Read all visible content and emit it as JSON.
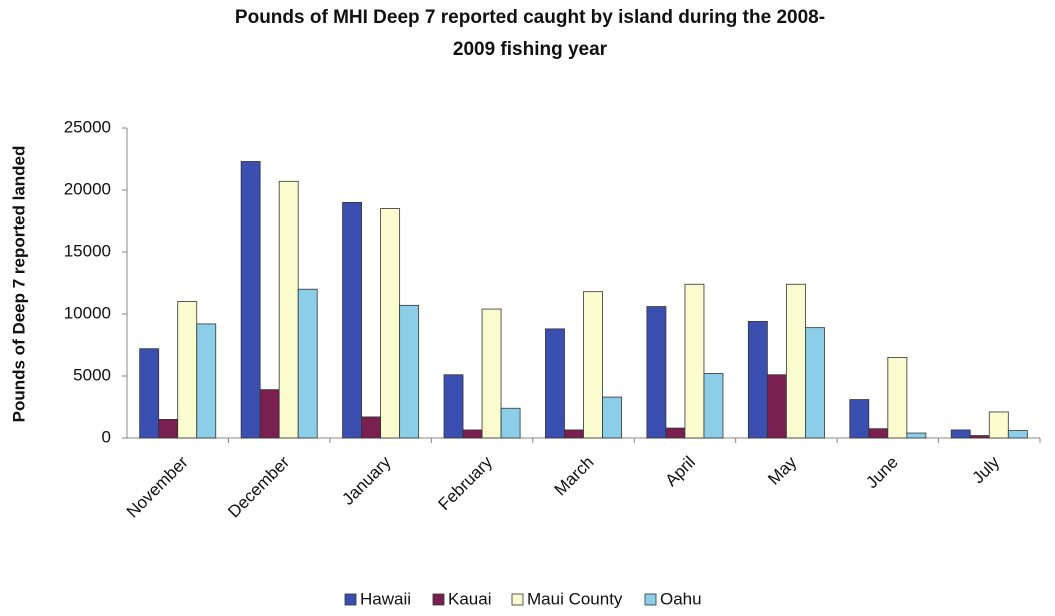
{
  "chart_data": {
    "type": "bar",
    "title": [
      "Pounds of MHI Deep 7 reported caught by island during the 2008-",
      "2009 fishing year"
    ],
    "y_label": "Pounds of Deep 7 reported landed",
    "categories": [
      "November",
      "December",
      "January",
      "February",
      "March",
      "April",
      "May",
      "June",
      "July"
    ],
    "series": [
      {
        "name": "Hawaii",
        "color": "#3a4fb0",
        "values": [
          7200,
          22300,
          19000,
          5100,
          8800,
          10600,
          9400,
          3100,
          650
        ]
      },
      {
        "name": "Kauai",
        "color": "#7a2050",
        "values": [
          1500,
          3900,
          1700,
          650,
          650,
          800,
          5100,
          750,
          200
        ]
      },
      {
        "name": "Maui County",
        "color": "#fbfbd0",
        "values": [
          11000,
          20700,
          18500,
          10400,
          11800,
          12400,
          12400,
          6500,
          2100
        ]
      },
      {
        "name": "Oahu",
        "color": "#8ccde8",
        "values": [
          9200,
          12000,
          10700,
          2400,
          3300,
          5200,
          8900,
          400,
          600
        ]
      }
    ],
    "ylim": [
      0,
      25000
    ],
    "yticks": [
      0,
      5000,
      10000,
      15000,
      20000,
      25000
    ],
    "grid": false,
    "legend": "bottom"
  }
}
